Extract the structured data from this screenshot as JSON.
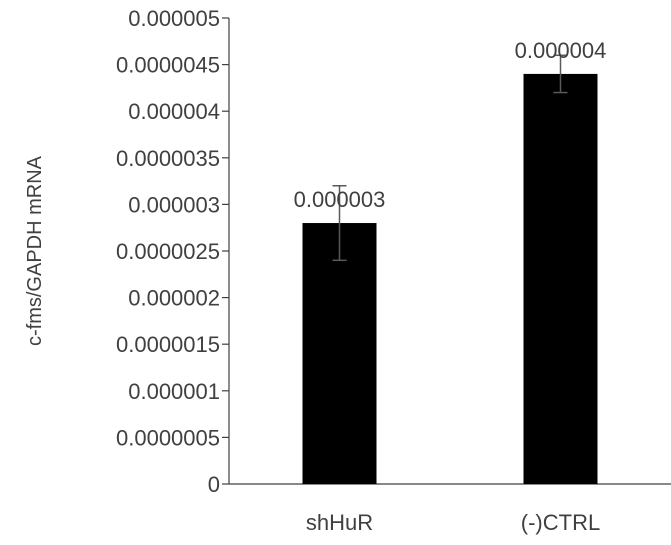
{
  "chart_data": {
    "type": "bar",
    "title": "",
    "xlabel": "",
    "ylabel": "c-fms/GAPDH mRNA",
    "categories": [
      "shHuR",
      "(-)CTRL"
    ],
    "values": [
      2.8e-06,
      4.4e-06
    ],
    "error": [
      4e-07,
      2e-07
    ],
    "data_labels": [
      "0.000003",
      "0.000004"
    ],
    "ylim": [
      0,
      5e-06
    ],
    "yticks": [
      0,
      5e-07,
      1e-06,
      1.5e-06,
      2e-06,
      2.5e-06,
      3e-06,
      3.5e-06,
      4e-06,
      4.5e-06,
      5e-06
    ],
    "ytick_labels": [
      "0",
      "0.0000005",
      "0.000001",
      "0.0000015",
      "0.000002",
      "0.0000025",
      "0.000003",
      "0.0000035",
      "0.000004",
      "0.0000045",
      "0.000005"
    ],
    "grid": false,
    "legend": "none",
    "bar_color": "#000000",
    "error_color": "#595959",
    "axis_color": "#404040"
  }
}
